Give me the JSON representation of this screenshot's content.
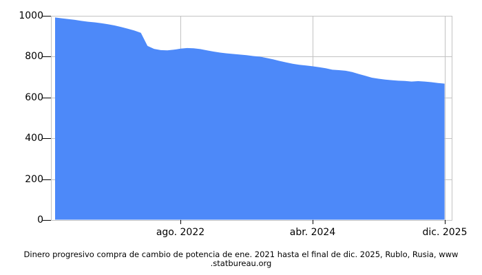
{
  "chart_data": {
    "type": "area",
    "title": "Dinero progresivo compra de cambio de potencia de ene. 2021 hasta el final de dic. 2025, Rublo, Rusia, www.statbureau.org",
    "x_start": "ene. 2021",
    "x_end": "dic. 2025",
    "interval": "monthly",
    "values": [
      992,
      988,
      984,
      980,
      975,
      971,
      968,
      964,
      959,
      953,
      945,
      937,
      928,
      917,
      853,
      838,
      832,
      831,
      834,
      839,
      842,
      841,
      837,
      831,
      825,
      820,
      816,
      813,
      810,
      807,
      803,
      800,
      794,
      787,
      779,
      772,
      765,
      760,
      757,
      753,
      748,
      743,
      736,
      734,
      731,
      725,
      715,
      706,
      697,
      692,
      688,
      685,
      682,
      681,
      678,
      680,
      678,
      675,
      671,
      668
    ],
    "ylim": [
      0,
      1000
    ],
    "yticks": [
      0,
      200,
      400,
      600,
      800,
      1000
    ],
    "xticks": [
      {
        "label": "ago. 2022",
        "index": 19
      },
      {
        "label": "abr. 2024",
        "index": 39
      },
      {
        "label": "dic. 2025",
        "index": 59
      }
    ],
    "grid": true,
    "legend": "none",
    "area_color": "#4D89F9",
    "grid_color": "#c2c2c2",
    "tick_color": "#000000",
    "axis_text_color": "#000000"
  },
  "caption": {
    "line1": "Dinero progresivo compra de cambio de potencia de ene. 2021 hasta el final de dic. 2025, Rublo, Rusia, www",
    "line2": ".statbureau.org"
  }
}
